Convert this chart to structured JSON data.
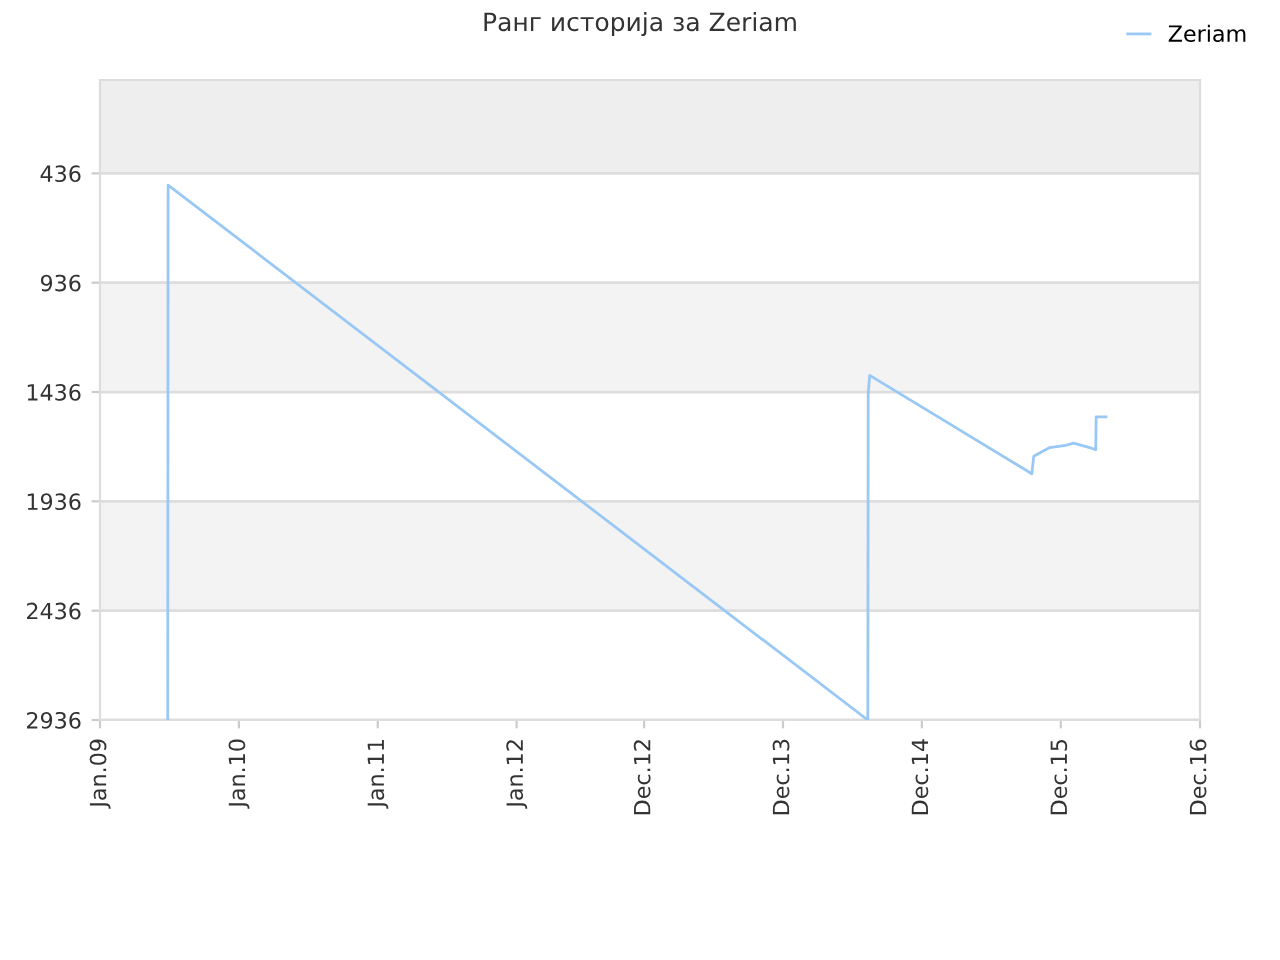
{
  "chart_data": {
    "type": "line",
    "title": "Ранг историја за Zeriam",
    "x": [
      "2009-06-28",
      "2009-06-29",
      "2014-07-12",
      "2014-07-13",
      "2014-07-17",
      "2015-09-16",
      "2015-09-21",
      "2015-11-02",
      "2015-12-14",
      "2016-01-04",
      "2016-02-15",
      "2016-03-02",
      "2016-03-03",
      "2016-03-29"
    ],
    "series": [
      {
        "name": "Zeriam",
        "color": "#99c8f5",
        "values": [
          2936,
          490,
          2936,
          1440,
          1360,
          1810,
          1730,
          1690,
          1680,
          1670,
          1690,
          1700,
          1550,
          1550
        ]
      }
    ],
    "xlim": [
      "2009-01-01",
      "2016-12-01"
    ],
    "xticks": [
      {
        "value": "2009-01-01",
        "label": "Jan.09"
      },
      {
        "value": "2010-01-01",
        "label": "Jan.10"
      },
      {
        "value": "2011-01-01",
        "label": "Jan.11"
      },
      {
        "value": "2012-01-01",
        "label": "Jan.12"
      },
      {
        "value": "2012-12-01",
        "label": "Dec.12"
      },
      {
        "value": "2013-12-01",
        "label": "Dec.13"
      },
      {
        "value": "2014-12-01",
        "label": "Dec.14"
      },
      {
        "value": "2015-12-01",
        "label": "Dec.15"
      },
      {
        "value": "2016-12-01",
        "label": "Dec.16"
      }
    ],
    "ylim": [
      2936,
      9
    ],
    "yticks": [
      436,
      936,
      1436,
      1936,
      2436,
      2936
    ],
    "bands": [
      {
        "axis": "y",
        "from": 9,
        "to": 436,
        "color": "#eeeeee"
      },
      {
        "axis": "y",
        "from": 936,
        "to": 1436,
        "color": "#f3f3f3"
      },
      {
        "axis": "y",
        "from": 1936,
        "to": 2436,
        "color": "#f3f3f3"
      }
    ],
    "grid": "y",
    "legend": "top right",
    "line_style": "solid",
    "marker": "none"
  }
}
